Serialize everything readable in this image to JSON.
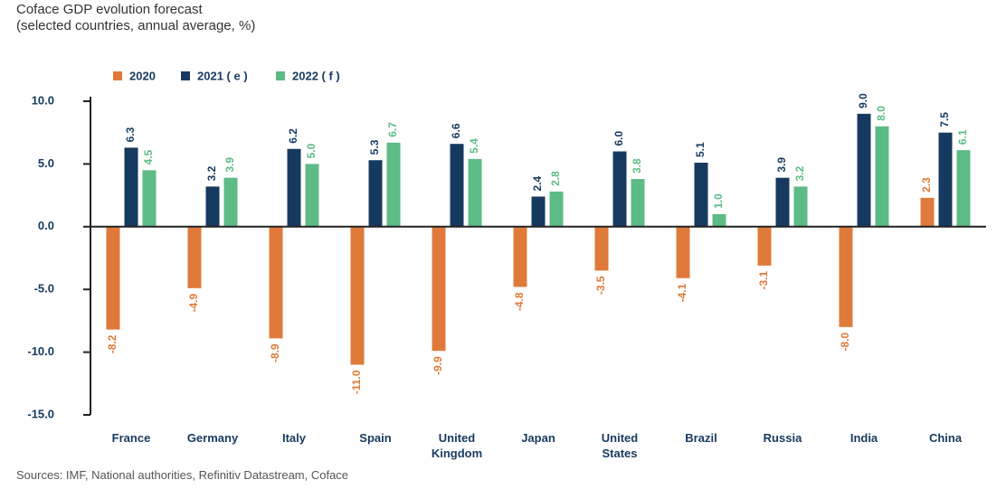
{
  "chart_data": {
    "type": "bar",
    "title": "Coface GDP evolution forecast",
    "subtitle": "(selected countries, annual average, %)",
    "source": "Sources: IMF, National authorities, Refinitiv Datastream, Coface",
    "categories": [
      "France",
      "Germany",
      "Italy",
      "Spain",
      "United Kingdom",
      "Japan",
      "United States",
      "Brazil",
      "Russia",
      "India",
      "China"
    ],
    "series": [
      {
        "name": "2020",
        "color": "#e07a3a",
        "values": [
          -8.2,
          -4.9,
          -8.9,
          -11.0,
          -9.9,
          -4.8,
          -3.5,
          -4.1,
          -3.1,
          -8.0,
          2.3
        ],
        "value_labels": [
          "-8.2",
          "-4.9",
          "-8.9",
          "-11.0",
          "-9.9",
          "-4.8",
          "-3.5",
          "-4.1",
          "-3.1",
          "-8.0",
          "2.3"
        ]
      },
      {
        "name": "2021 ( e )",
        "color": "#163a5f",
        "values": [
          6.3,
          3.2,
          6.2,
          5.3,
          6.6,
          2.4,
          6.0,
          5.1,
          3.9,
          9.0,
          7.5
        ],
        "value_labels": [
          "6.3",
          "3.2",
          "6.2",
          "5.3",
          "6.6",
          "2.4",
          "6.0",
          "5.1",
          "3.9",
          "9.0",
          "7.5"
        ]
      },
      {
        "name": "2022 ( f )",
        "color": "#5dbb86",
        "values": [
          4.5,
          3.9,
          5.0,
          6.7,
          5.4,
          2.8,
          3.8,
          1.0,
          3.2,
          8.0,
          6.1
        ],
        "value_labels": [
          "4.5",
          "3.9",
          "5.0",
          "6.7",
          "5.4",
          "2.8",
          "3.8",
          "1.0",
          "3.2",
          "8.0",
          "6.1"
        ]
      }
    ],
    "ylim": [
      -15,
      10
    ],
    "yticks": [
      {
        "value": 10,
        "label": "10.0"
      },
      {
        "value": 5,
        "label": "5.0"
      },
      {
        "value": 0,
        "label": "0.0"
      },
      {
        "value": -5,
        "label": "-5.0"
      },
      {
        "value": -10,
        "label": "-10.0"
      },
      {
        "value": -15,
        "label": "-15.0"
      }
    ],
    "legend": "top-left"
  }
}
